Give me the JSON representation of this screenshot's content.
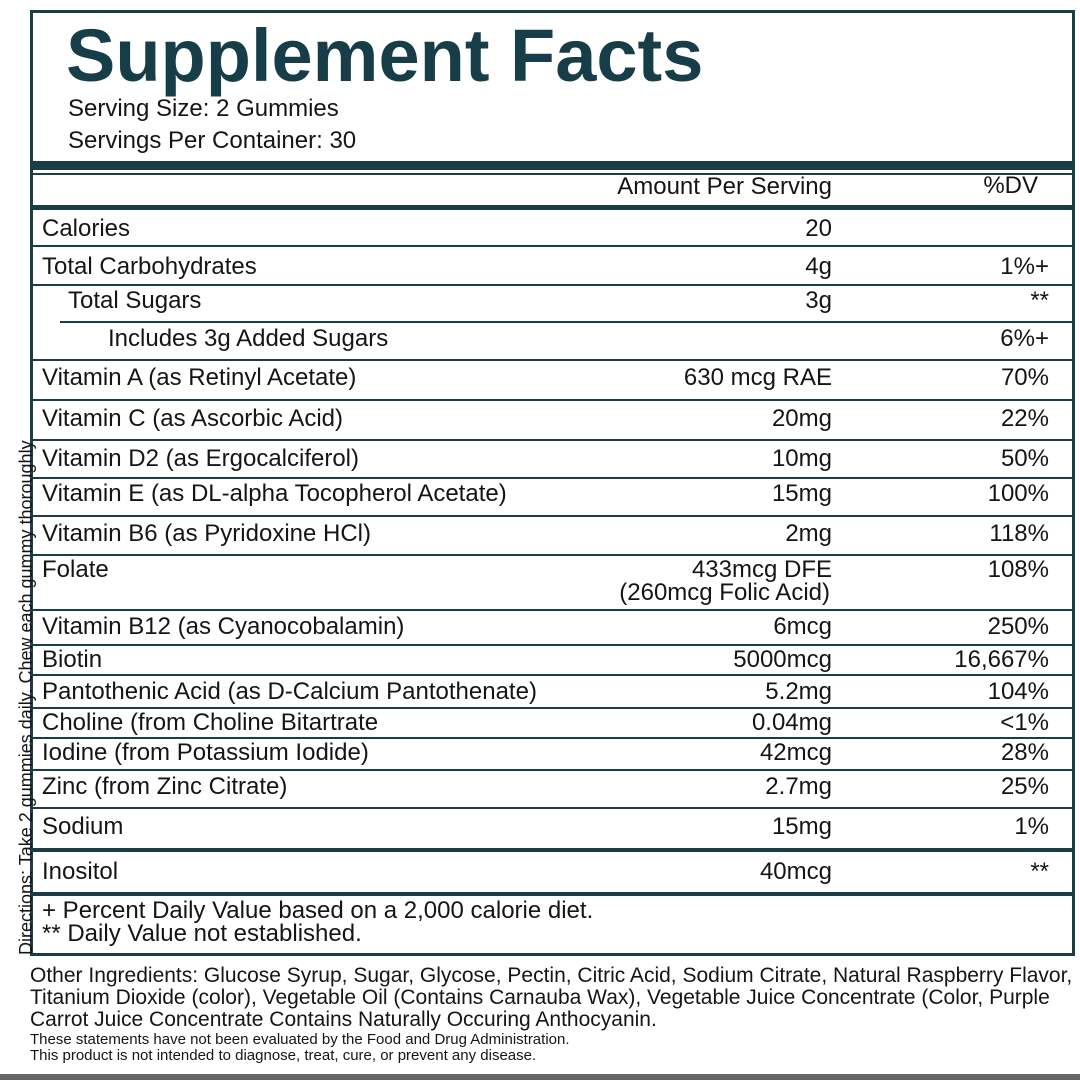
{
  "header": {
    "title": "Supplement Facts",
    "serving_size": "Serving Size: 2 Gummies",
    "servings_per_container": "Servings Per Container: 30"
  },
  "table": {
    "columns": {
      "amount": "Amount Per Serving",
      "dv": "%DV"
    },
    "rows": [
      {
        "label": "Calories",
        "amount": "20"
      },
      {
        "label": "Total Carbohydrates",
        "amount": "4g",
        "dv": "1%+"
      },
      {
        "label": "Total Sugars",
        "amount": "3g",
        "dv": "**"
      },
      {
        "label": "Includes 3g Added Sugars",
        "dv": "6%+"
      },
      {
        "label": "Vitamin A (as Retinyl Acetate)",
        "amount": "630 mcg RAE",
        "dv": "70%"
      },
      {
        "label": "Vitamin C (as Ascorbic Acid)",
        "amount": "20mg",
        "dv": "22%"
      },
      {
        "label": "Vitamin D2 (as Ergocalciferol)",
        "amount": "10mg",
        "dv": "50%"
      },
      {
        "label": "Vitamin E (as DL-alpha Tocopherol Acetate)",
        "amount": "15mg",
        "dv": "100%"
      },
      {
        "label": "Vitamin B6 (as Pyridoxine HCl)",
        "amount": "2mg",
        "dv": "118%"
      },
      {
        "label": "Folate",
        "amount": "433mcg DFE",
        "amount_note": "(260mcg Folic Acid)",
        "dv": "108%"
      },
      {
        "label": "Vitamin B12 (as Cyanocobalamin)",
        "amount": "6mcg",
        "dv": "250%"
      },
      {
        "label": "Biotin",
        "amount": "5000mcg",
        "dv": "16,667%"
      },
      {
        "label": "Pantothenic Acid (as D-Calcium Pantothenate)",
        "amount": "5.2mg",
        "dv": "104%"
      },
      {
        "label": "Choline (from Choline Bitartrate",
        "amount": "0.04mg",
        "dv": "<1%"
      },
      {
        "label": "Iodine (from Potassium Iodide)",
        "amount": "42mcg",
        "dv": "28%"
      },
      {
        "label": "Zinc (from Zinc Citrate)",
        "amount": "2.7mg",
        "dv": "25%"
      },
      {
        "label": "Sodium",
        "amount": "15mg",
        "dv": "1%"
      },
      {
        "label": "Inositol",
        "amount": "40mcg",
        "dv": "**"
      }
    ]
  },
  "footnotes": [
    "+ Percent Daily Value based on a 2,000 calorie diet.",
    "** Daily Value not established."
  ],
  "directions": "Directions: Take 2 gummies daily. Chew each gummy thoroughly",
  "other_ingredients": "Other Ingredients: Glucose Syrup, Sugar, Glycose, Pectin, Citric Acid, Sodium Citrate, Natural Raspberry Flavor, Titanium Dioxide (color), Vegetable Oil (Contains Carnauba Wax), Vegetable Juice Concentrate (Color, Purple Carrot Juice Concentrate Contains Naturally Occuring Anthocyanin.",
  "disclaimer": [
    "These statements have not been evaluated by the Food and Drug Administration.",
    "This product is not intended to diagnose, treat, cure, or prevent any disease."
  ]
}
